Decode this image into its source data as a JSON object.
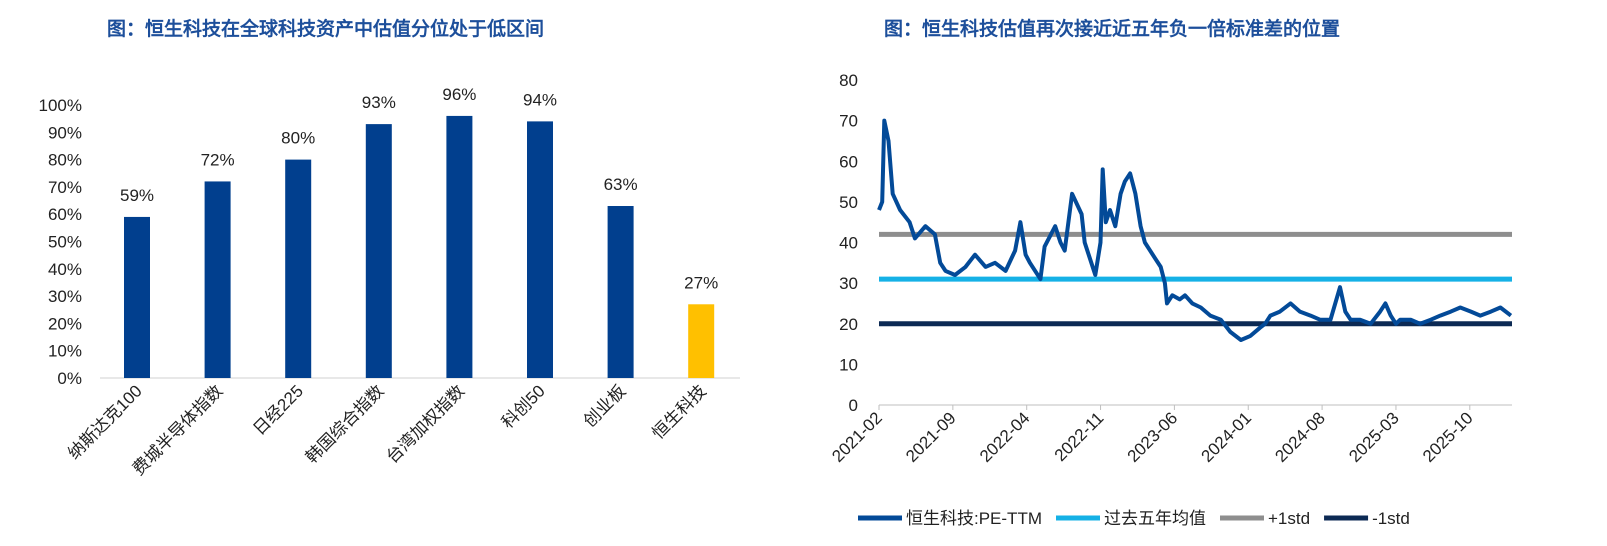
{
  "chart_data": [
    {
      "type": "bar",
      "title": "图：恒生科技在全球科技资产中估值分位处于低区间",
      "categories": [
        "纳斯达克100",
        "费城半导体指数",
        "日经225",
        "韩国综合指数",
        "台湾加权指数",
        "科创50",
        "创业板",
        "恒生科技"
      ],
      "values": [
        59,
        72,
        80,
        93,
        96,
        94,
        63,
        27
      ],
      "data_labels": [
        "59%",
        "72%",
        "80%",
        "93%",
        "96%",
        "94%",
        "63%",
        "27%"
      ],
      "highlight_index": 7,
      "ylim": [
        0,
        100
      ],
      "yticks": [
        "0%",
        "10%",
        "20%",
        "30%",
        "40%",
        "50%",
        "60%",
        "70%",
        "80%",
        "90%",
        "100%"
      ],
      "xlabel": "",
      "ylabel": "",
      "grid": false,
      "colors": {
        "bar": "#013f8e",
        "highlight": "#ffc000"
      }
    },
    {
      "type": "line",
      "title": "图：恒生科技估值再次接近近五年负一倍标准差的位置",
      "x_unit": "months since 2021-02",
      "xlim": [
        0,
        60
      ],
      "xticks": [
        {
          "x": 0,
          "label": "2021-02"
        },
        {
          "x": 7,
          "label": "2021-09"
        },
        {
          "x": 14,
          "label": "2022-04"
        },
        {
          "x": 21,
          "label": "2022-11"
        },
        {
          "x": 28,
          "label": "2023-06"
        },
        {
          "x": 35,
          "label": "2024-01"
        },
        {
          "x": 42,
          "label": "2024-08"
        },
        {
          "x": 49,
          "label": "2025-03"
        },
        {
          "x": 56,
          "label": "2025-10"
        }
      ],
      "ylim": [
        0,
        80
      ],
      "yticks": [
        "0",
        "10",
        "20",
        "30",
        "40",
        "50",
        "60",
        "70",
        "80"
      ],
      "grid": false,
      "legend_position": "bottom",
      "series": [
        {
          "name": "恒生科技:PE-TTM",
          "color": "#034a98",
          "points": [
            [
              0,
              48
            ],
            [
              0.3,
              50
            ],
            [
              0.5,
              70
            ],
            [
              0.9,
              65
            ],
            [
              1.3,
              52
            ],
            [
              2.0,
              48
            ],
            [
              2.9,
              45
            ],
            [
              3.4,
              41
            ],
            [
              4.4,
              44
            ],
            [
              5.3,
              42
            ],
            [
              5.8,
              35
            ],
            [
              6.3,
              33
            ],
            [
              7.2,
              32
            ],
            [
              8.2,
              34
            ],
            [
              9.1,
              37
            ],
            [
              10.1,
              34
            ],
            [
              11.0,
              35
            ],
            [
              12.0,
              33
            ],
            [
              12.9,
              38
            ],
            [
              13.4,
              45
            ],
            [
              13.9,
              37
            ],
            [
              14.3,
              35
            ],
            [
              15.3,
              31
            ],
            [
              15.7,
              39
            ],
            [
              16.7,
              44
            ],
            [
              17.2,
              40
            ],
            [
              17.6,
              38
            ],
            [
              18.3,
              52
            ],
            [
              19.2,
              47
            ],
            [
              19.5,
              40
            ],
            [
              20.0,
              36
            ],
            [
              20.5,
              32
            ],
            [
              21.0,
              40
            ],
            [
              21.2,
              58
            ],
            [
              21.5,
              45
            ],
            [
              21.9,
              48
            ],
            [
              22.4,
              44
            ],
            [
              22.9,
              52
            ],
            [
              23.3,
              55
            ],
            [
              23.8,
              57
            ],
            [
              24.3,
              52
            ],
            [
              24.8,
              44
            ],
            [
              25.2,
              40
            ],
            [
              25.7,
              38
            ],
            [
              26.2,
              36
            ],
            [
              26.7,
              34
            ],
            [
              27.1,
              30
            ],
            [
              27.3,
              25
            ],
            [
              27.8,
              27
            ],
            [
              28.5,
              26
            ],
            [
              29.0,
              27
            ],
            [
              29.7,
              25
            ],
            [
              30.5,
              24
            ],
            [
              31.4,
              22
            ],
            [
              32.4,
              21
            ],
            [
              33.3,
              18
            ],
            [
              34.3,
              16
            ],
            [
              35.2,
              17
            ],
            [
              36.1,
              19
            ],
            [
              36.6,
              20
            ],
            [
              37.1,
              22
            ],
            [
              38.0,
              23
            ],
            [
              39.0,
              25
            ],
            [
              39.9,
              23
            ],
            [
              40.9,
              22
            ],
            [
              41.8,
              21
            ],
            [
              42.8,
              21
            ],
            [
              43.7,
              29
            ],
            [
              44.2,
              23
            ],
            [
              44.7,
              21
            ],
            [
              45.6,
              21
            ],
            [
              46.6,
              20
            ],
            [
              47.5,
              23
            ],
            [
              48.0,
              25
            ],
            [
              48.5,
              22
            ],
            [
              49.0,
              20
            ],
            [
              49.4,
              21
            ],
            [
              50.4,
              21
            ],
            [
              51.3,
              20
            ],
            [
              52.3,
              21
            ],
            [
              53.2,
              22
            ],
            [
              54.2,
              23
            ],
            [
              55.1,
              24
            ],
            [
              56.1,
              23
            ],
            [
              57.0,
              22
            ],
            [
              58.0,
              23
            ],
            [
              58.9,
              24
            ],
            [
              59.9,
              22
            ]
          ]
        },
        {
          "name": "过去五年均值",
          "color": "#15b1e6",
          "constant": 31
        },
        {
          "name": "+1std",
          "color": "#8e8e8e",
          "constant": 42
        },
        {
          "name": "-1std",
          "color": "#0c2a54",
          "constant": 20
        }
      ]
    }
  ]
}
